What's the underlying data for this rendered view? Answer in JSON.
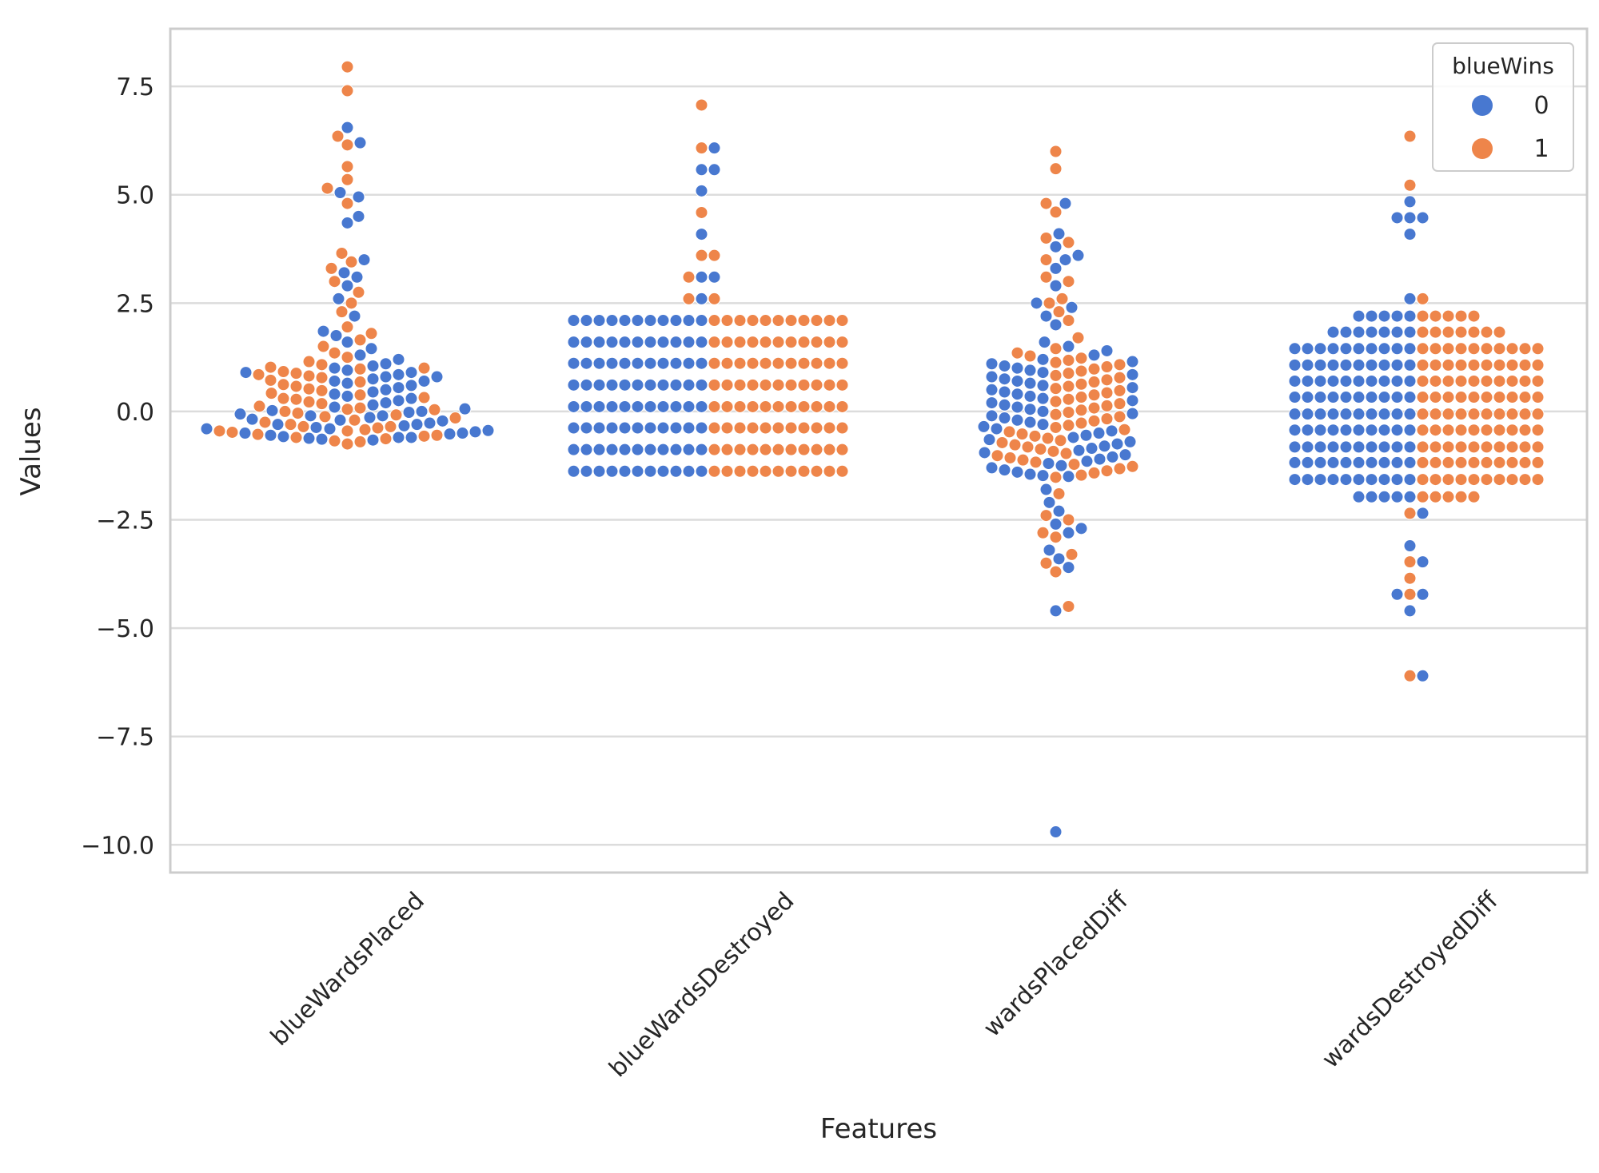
{
  "chart_data": {
    "type": "swarm",
    "x_label": "Features",
    "y_label": "Values",
    "categories": [
      "blueWardsPlaced",
      "blueWardsDestroyed",
      "wardsPlacedDiff",
      "wardsDestroyedDiff"
    ],
    "ylim": [
      -10.64,
      8.83
    ],
    "yticks": [
      {
        "value": -10,
        "label": "−10.0"
      },
      {
        "value": -7.5,
        "label": "−7.5"
      },
      {
        "value": -5,
        "label": "−5.0"
      },
      {
        "value": -2.5,
        "label": "−2.5"
      },
      {
        "value": 0,
        "label": "0.0"
      },
      2.5,
      {
        "value": 5,
        "label": "5.0"
      },
      7.5
    ],
    "grid": true,
    "legend_title": "blueWins",
    "legend_position": "upper right",
    "series": [
      {
        "name": "0",
        "color": "#4878d0",
        "values": [
          [
            -0.66,
            -0.64,
            -0.62,
            -0.6,
            -0.58,
            -0.55,
            -0.52,
            -0.5,
            -0.47,
            -0.44,
            -0.4,
            -0.37,
            -0.33,
            -0.3,
            -0.27,
            -0.22,
            -0.18,
            -0.14,
            -0.1,
            -0.06,
            -0.02,
            0.02,
            0.06,
            0.1,
            0.15,
            0.2,
            0.25,
            0.3,
            0.35,
            0.4,
            0.45,
            0.5,
            0.55,
            0.6,
            0.65,
            0.7,
            0.75,
            0.8,
            0.85,
            0.9,
            0.95,
            1.0,
            1.05,
            1.1,
            1.2,
            1.3,
            1.45,
            1.6,
            1.75,
            1.85,
            2.2,
            2.6,
            2.9,
            3.1,
            3.2,
            3.5,
            4.35,
            4.5,
            4.95,
            5.05,
            6.2,
            6.55,
            -0.6,
            -0.5,
            -0.4,
            -0.3,
            -0.2,
            -0.1,
            0,
            0.7,
            0.8,
            0.9
          ],
          [
            -1.38,
            -1.38,
            -1.38,
            -1.38,
            -1.38,
            -1.38,
            -1.38,
            -1.38,
            -1.38,
            -1.38,
            -1.38,
            -0.88,
            -0.88,
            -0.88,
            -0.88,
            -0.88,
            -0.88,
            -0.88,
            -0.88,
            -0.88,
            -0.88,
            -0.88,
            -0.38,
            -0.38,
            -0.38,
            -0.38,
            -0.38,
            -0.38,
            -0.38,
            -0.38,
            -0.38,
            -0.38,
            -0.38,
            0.11,
            0.11,
            0.11,
            0.11,
            0.11,
            0.11,
            0.11,
            0.11,
            0.11,
            0.11,
            0.11,
            0.61,
            0.61,
            0.61,
            0.61,
            0.61,
            0.61,
            0.61,
            0.61,
            0.61,
            0.61,
            0.61,
            1.11,
            1.11,
            1.11,
            1.11,
            1.11,
            1.11,
            1.11,
            1.11,
            1.11,
            1.11,
            1.11,
            1.6,
            1.6,
            1.6,
            1.6,
            1.6,
            1.6,
            1.6,
            1.6,
            1.6,
            1.6,
            1.6,
            2.1,
            2.1,
            2.1,
            2.1,
            2.1,
            2.1,
            2.1,
            2.1,
            2.1,
            2.1,
            2.1,
            2.6,
            3.1,
            3.1,
            4.09,
            5.09,
            5.58,
            5.58,
            6.08
          ],
          [
            -1.5,
            -1.48,
            -1.45,
            -1.4,
            -1.35,
            -1.3,
            -1.25,
            -1.2,
            -1.15,
            -1.1,
            -1.05,
            -1.0,
            -0.95,
            -0.9,
            -0.85,
            -0.8,
            -0.75,
            -0.7,
            -0.65,
            -0.6,
            -0.55,
            -0.5,
            -0.45,
            -0.4,
            -0.35,
            -0.3,
            -0.25,
            -0.2,
            -0.15,
            -0.1,
            -0.05,
            0,
            0.05,
            0.1,
            0.15,
            0.2,
            0.25,
            0.3,
            0.35,
            0.4,
            0.45,
            0.5,
            0.55,
            0.6,
            0.65,
            0.7,
            0.75,
            0.8,
            0.85,
            0.9,
            0.95,
            1.0,
            1.05,
            1.1,
            1.15,
            1.2,
            1.3,
            1.4,
            1.5,
            1.6,
            2.0,
            2.2,
            2.4,
            2.5,
            2.9,
            3.3,
            3.5,
            3.6,
            3.8,
            4.1,
            4.8,
            -1.8,
            -2.1,
            -2.3,
            -2.6,
            -2.7,
            -2.8,
            -3.2,
            -3.4,
            -3.6,
            -4.6,
            -9.7
          ],
          [
            -1.97,
            -1.97,
            -1.97,
            -1.97,
            -1.97,
            -1.57,
            -1.57,
            -1.57,
            -1.57,
            -1.57,
            -1.57,
            -1.57,
            -1.57,
            -1.57,
            -1.57,
            -1.18,
            -1.18,
            -1.18,
            -1.18,
            -1.18,
            -1.18,
            -1.18,
            -1.18,
            -1.18,
            -1.18,
            -0.82,
            -0.82,
            -0.82,
            -0.82,
            -0.82,
            -0.82,
            -0.82,
            -0.82,
            -0.82,
            -0.82,
            -0.43,
            -0.43,
            -0.43,
            -0.43,
            -0.43,
            -0.43,
            -0.43,
            -0.43,
            -0.43,
            -0.43,
            -0.06,
            -0.06,
            -0.06,
            -0.06,
            -0.06,
            -0.06,
            -0.06,
            -0.06,
            -0.06,
            -0.06,
            0.33,
            0.33,
            0.33,
            0.33,
            0.33,
            0.33,
            0.33,
            0.33,
            0.33,
            0.33,
            0.7,
            0.7,
            0.7,
            0.7,
            0.7,
            0.7,
            0.7,
            0.7,
            0.7,
            0.7,
            1.07,
            1.07,
            1.07,
            1.07,
            1.07,
            1.07,
            1.07,
            1.07,
            1.07,
            1.07,
            1.45,
            1.45,
            1.45,
            1.45,
            1.45,
            1.45,
            1.45,
            1.45,
            1.45,
            1.45,
            1.83,
            1.83,
            1.83,
            1.83,
            1.83,
            1.83,
            1.83,
            2.2,
            2.2,
            2.2,
            2.2,
            2.2,
            2.6,
            4.09,
            4.47,
            4.47,
            4.47,
            4.84,
            -2.35,
            -3.1,
            -3.47,
            -4.22,
            -4.22,
            -4.6,
            -6.1
          ]
        ]
      },
      {
        "name": "1",
        "color": "#ee854a",
        "values": [
          [
            -0.75,
            -0.7,
            -0.68,
            -0.63,
            -0.6,
            -0.57,
            -0.53,
            -0.48,
            -0.45,
            -0.42,
            -0.38,
            -0.35,
            -0.3,
            -0.25,
            -0.2,
            -0.15,
            -0.12,
            -0.08,
            -0.04,
            0,
            0.04,
            0.08,
            0.12,
            0.18,
            0.22,
            0.28,
            0.32,
            0.38,
            0.42,
            0.48,
            0.52,
            0.58,
            0.62,
            0.68,
            0.72,
            0.78,
            0.82,
            0.88,
            0.92,
            0.98,
            1.02,
            1.08,
            1.15,
            1.25,
            1.35,
            1.5,
            1.65,
            1.8,
            1.95,
            2.3,
            2.5,
            2.75,
            3.0,
            3.3,
            3.45,
            3.65,
            4.8,
            5.15,
            5.35,
            5.65,
            6.15,
            6.35,
            7.4,
            7.95,
            -0.55,
            -0.45,
            -0.35,
            0.05,
            0.3,
            0.85,
            1.0
          ],
          [
            -1.38,
            -1.38,
            -1.38,
            -1.38,
            -1.38,
            -1.38,
            -1.38,
            -1.38,
            -1.38,
            -1.38,
            -1.38,
            -0.88,
            -0.88,
            -0.88,
            -0.88,
            -0.88,
            -0.88,
            -0.88,
            -0.88,
            -0.88,
            -0.88,
            -0.88,
            -0.38,
            -0.38,
            -0.38,
            -0.38,
            -0.38,
            -0.38,
            -0.38,
            -0.38,
            -0.38,
            -0.38,
            -0.38,
            0.11,
            0.11,
            0.11,
            0.11,
            0.11,
            0.11,
            0.11,
            0.11,
            0.11,
            0.11,
            0.11,
            0.61,
            0.61,
            0.61,
            0.61,
            0.61,
            0.61,
            0.61,
            0.61,
            0.61,
            0.61,
            0.61,
            1.11,
            1.11,
            1.11,
            1.11,
            1.11,
            1.11,
            1.11,
            1.11,
            1.11,
            1.11,
            1.11,
            1.6,
            1.6,
            1.6,
            1.6,
            1.6,
            1.6,
            1.6,
            1.6,
            1.6,
            1.6,
            1.6,
            2.1,
            2.1,
            2.1,
            2.1,
            2.1,
            2.1,
            2.1,
            2.1,
            2.1,
            2.1,
            2.1,
            2.6,
            2.6,
            3.1,
            3.6,
            3.6,
            4.59,
            6.08,
            7.07
          ],
          [
            -1.52,
            -1.47,
            -1.42,
            -1.37,
            -1.32,
            -1.27,
            -1.22,
            -1.17,
            -1.12,
            -1.07,
            -1.02,
            -0.97,
            -0.92,
            -0.87,
            -0.82,
            -0.77,
            -0.72,
            -0.67,
            -0.62,
            -0.57,
            -0.52,
            -0.47,
            -0.42,
            -0.37,
            -0.32,
            -0.27,
            -0.22,
            -0.17,
            -0.12,
            -0.07,
            -0.02,
            0.03,
            0.08,
            0.13,
            0.18,
            0.23,
            0.28,
            0.33,
            0.38,
            0.43,
            0.48,
            0.53,
            0.58,
            0.63,
            0.68,
            0.73,
            0.78,
            0.83,
            0.88,
            0.93,
            0.98,
            1.03,
            1.08,
            1.13,
            1.18,
            1.23,
            1.28,
            1.35,
            1.45,
            1.7,
            2.1,
            2.3,
            2.5,
            2.6,
            3.0,
            3.1,
            3.5,
            3.9,
            4.0,
            4.6,
            4.8,
            5.6,
            6.0,
            -1.9,
            -2.4,
            -2.5,
            -2.8,
            -2.9,
            -3.3,
            -3.5,
            -3.7,
            -4.5
          ],
          [
            -1.97,
            -1.97,
            -1.97,
            -1.97,
            -1.97,
            -1.57,
            -1.57,
            -1.57,
            -1.57,
            -1.57,
            -1.57,
            -1.57,
            -1.57,
            -1.57,
            -1.57,
            -1.18,
            -1.18,
            -1.18,
            -1.18,
            -1.18,
            -1.18,
            -1.18,
            -1.18,
            -1.18,
            -1.18,
            -0.82,
            -0.82,
            -0.82,
            -0.82,
            -0.82,
            -0.82,
            -0.82,
            -0.82,
            -0.82,
            -0.82,
            -0.43,
            -0.43,
            -0.43,
            -0.43,
            -0.43,
            -0.43,
            -0.43,
            -0.43,
            -0.43,
            -0.43,
            -0.06,
            -0.06,
            -0.06,
            -0.06,
            -0.06,
            -0.06,
            -0.06,
            -0.06,
            -0.06,
            -0.06,
            0.33,
            0.33,
            0.33,
            0.33,
            0.33,
            0.33,
            0.33,
            0.33,
            0.33,
            0.33,
            0.7,
            0.7,
            0.7,
            0.7,
            0.7,
            0.7,
            0.7,
            0.7,
            0.7,
            0.7,
            1.07,
            1.07,
            1.07,
            1.07,
            1.07,
            1.07,
            1.07,
            1.07,
            1.07,
            1.07,
            1.45,
            1.45,
            1.45,
            1.45,
            1.45,
            1.45,
            1.45,
            1.45,
            1.45,
            1.45,
            1.83,
            1.83,
            1.83,
            1.83,
            1.83,
            1.83,
            1.83,
            2.2,
            2.2,
            2.2,
            2.2,
            2.2,
            2.6,
            5.22,
            6.35,
            -2.35,
            -3.47,
            -3.85,
            -4.22,
            -6.1
          ]
        ]
      }
    ]
  }
}
